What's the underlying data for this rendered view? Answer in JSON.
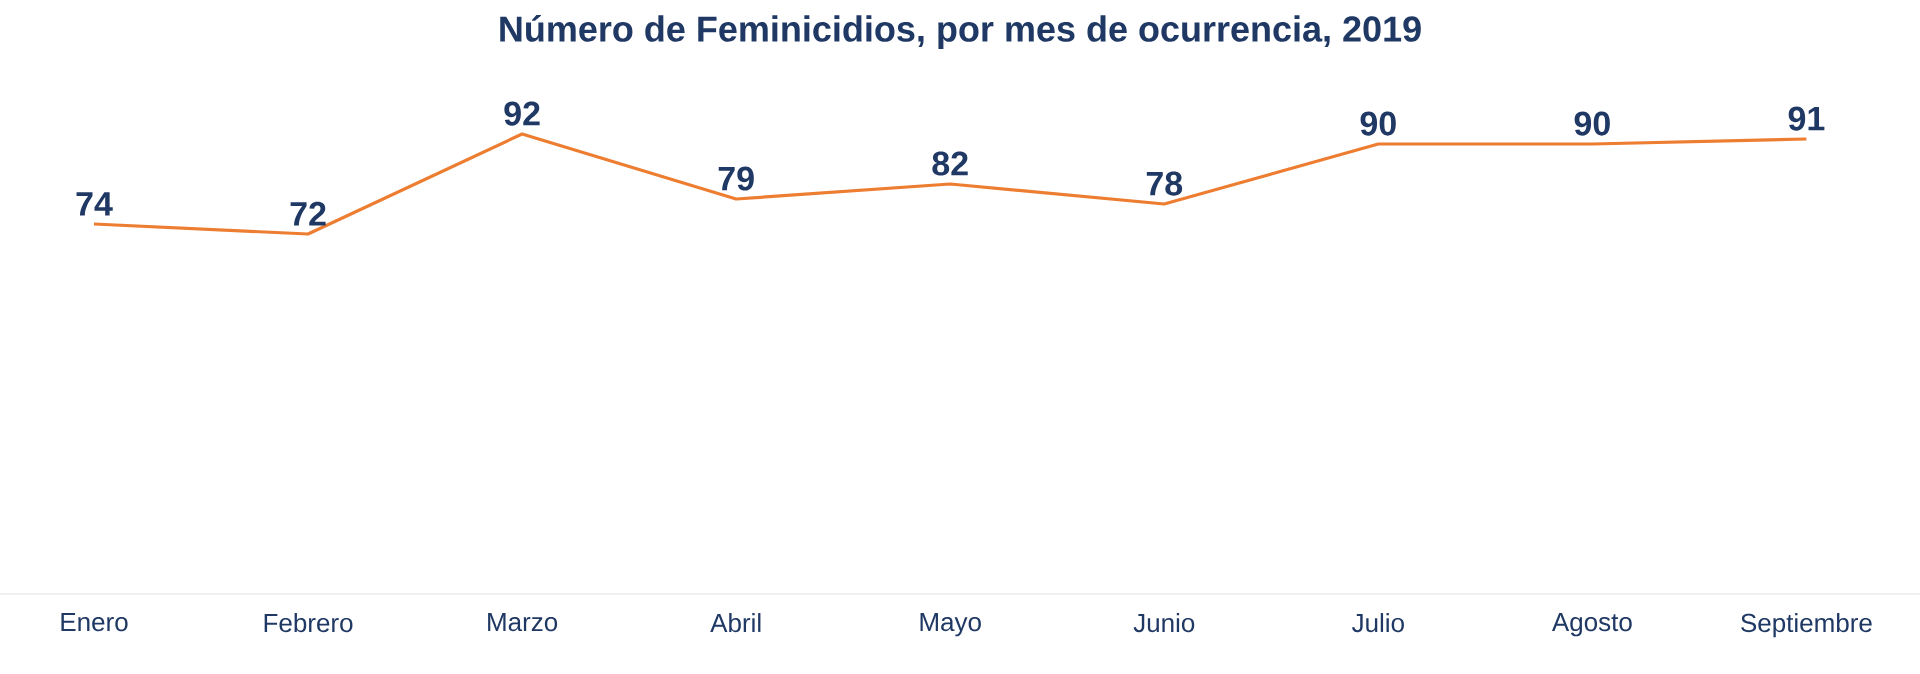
{
  "chart_data": {
    "type": "line",
    "title": "Número de Feminicidios, por mes de ocurrencia, 2019",
    "categories": [
      "Enero",
      "Febrero",
      "Marzo",
      "Abril",
      "Mayo",
      "Junio",
      "Julio",
      "Agosto",
      "Septiembre"
    ],
    "values": [
      74,
      72,
      92,
      79,
      82,
      78,
      90,
      90,
      91
    ],
    "color": "#ed7d31",
    "data_labels": true,
    "marker": "none",
    "line_style": "solid"
  }
}
